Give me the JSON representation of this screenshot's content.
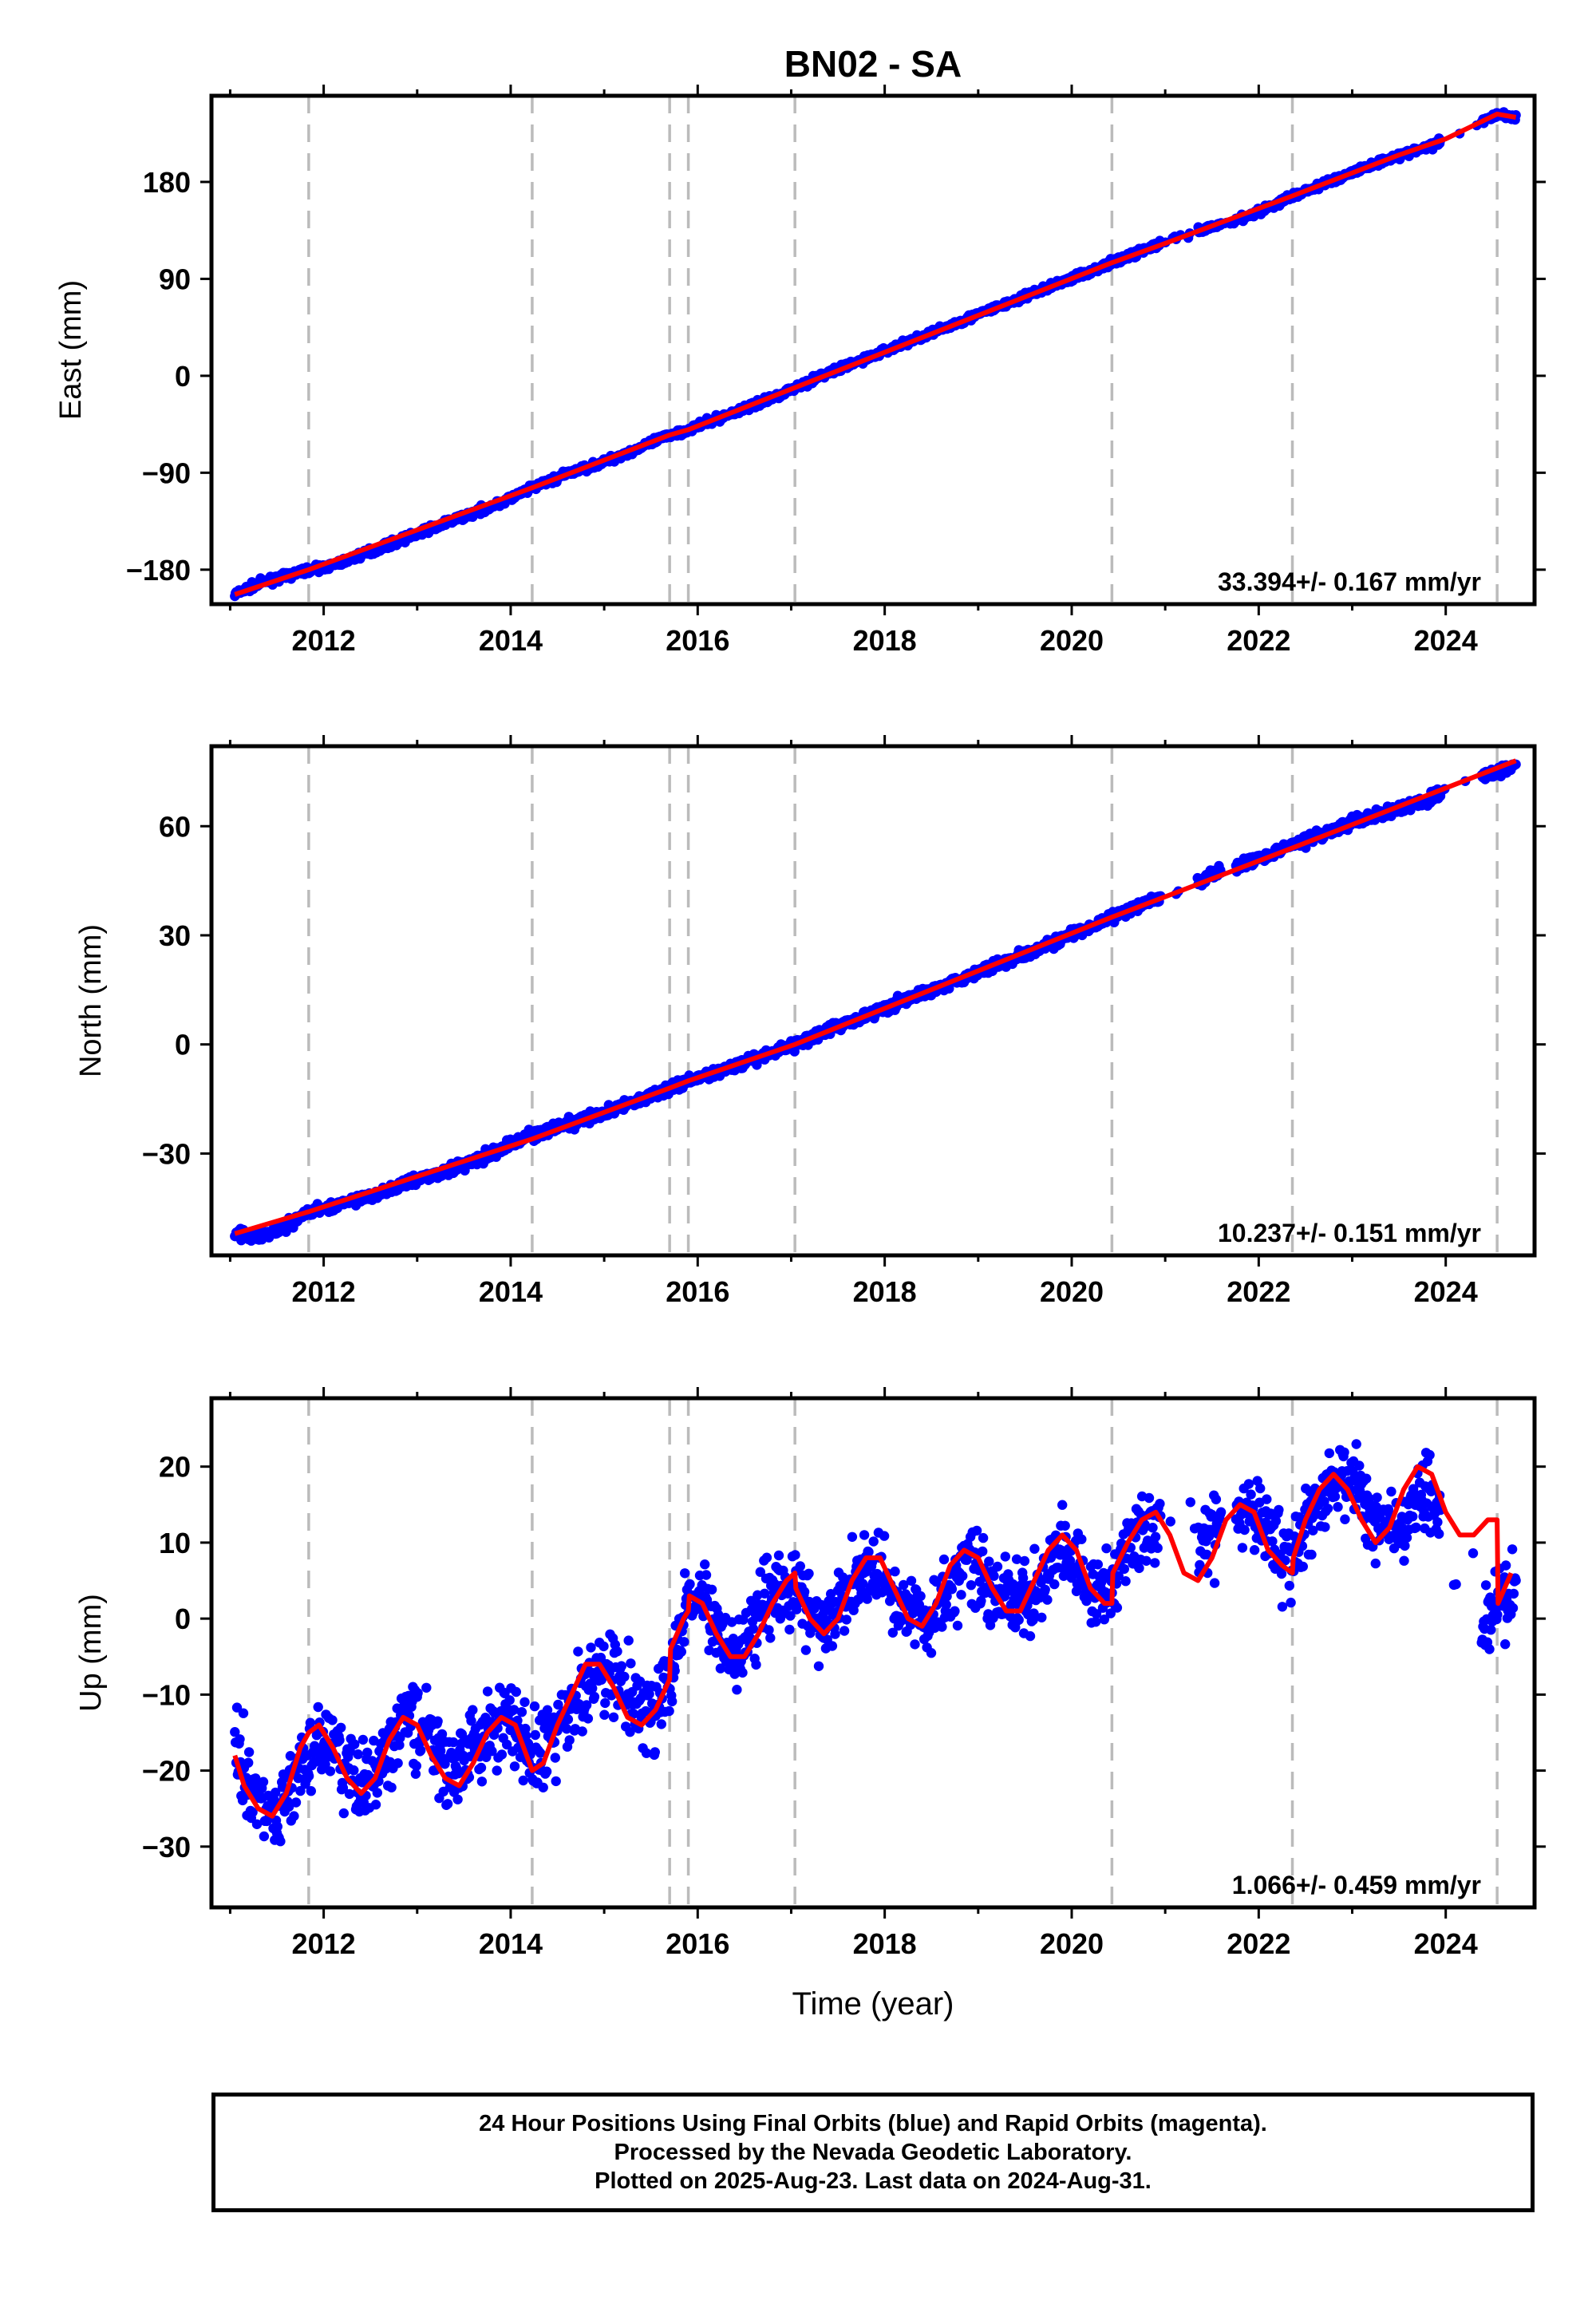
{
  "title": "BN02 - SA",
  "colors": {
    "data": "#0000ff",
    "model": "#ff0000",
    "breaks": "#bbbbbb",
    "frame": "#000000"
  },
  "footer": {
    "line1": "24 Hour Positions Using Final Orbits (blue) and Rapid Orbits (magenta).",
    "line2": "Processed by the Nevada Geodetic Laboratory.",
    "line3": "Plotted on 2025-Aug-23. Last data on 2024-Aug-31."
  },
  "chart_data": [
    {
      "type": "scatter",
      "title": "BN02 - SA",
      "ylabel": "East (mm)",
      "xlabel": "",
      "xlim": [
        2010.8,
        2024.95
      ],
      "ylim": [
        -212,
        260
      ],
      "xticks": [
        2012,
        2014,
        2016,
        2018,
        2020,
        2022,
        2024
      ],
      "yticks": [
        -180,
        -90,
        0,
        90,
        180
      ],
      "ytick_labels": [
        "−180",
        "−90",
        "0",
        "90",
        "180"
      ],
      "rate_label": "33.394+/- 0.167 mm/yr",
      "breaks": [
        2011.84,
        2014.23,
        2015.7,
        2015.9,
        2017.04,
        2020.43,
        2022.36,
        2024.55
      ],
      "series": [
        {
          "kind": "observations",
          "x": [
            2011.05,
            2011.3,
            2011.6,
            2011.84,
            2012.1,
            2012.5,
            2012.9,
            2013.3,
            2013.7,
            2014.0,
            2014.23,
            2014.6,
            2015.0,
            2015.4,
            2015.7,
            2015.9,
            2016.3,
            2016.7,
            2017.04,
            2017.4,
            2017.8,
            2018.2,
            2018.6,
            2019.0,
            2019.4,
            2019.8,
            2020.2,
            2020.43,
            2020.8,
            2021.1,
            2021.9,
            2022.1,
            2022.36,
            2022.7,
            2023.0,
            2023.4,
            2023.8,
            2024.0,
            2024.55,
            2024.75
          ],
          "y": [
            -203,
            -193,
            -186,
            -180,
            -176,
            -163,
            -150,
            -137,
            -124,
            -114,
            -104,
            -91,
            -80,
            -66,
            -55,
            -50,
            -37,
            -24,
            -11,
            3,
            16,
            30,
            43,
            57,
            70,
            84,
            97,
            105,
            118,
            127,
            149,
            156,
            167,
            178,
            189,
            202,
            212,
            220,
            243,
            240
          ]
        },
        {
          "kind": "model",
          "x": [
            2011.05,
            2011.84,
            2014.23,
            2015.7,
            2015.9,
            2017.04,
            2020.43,
            2021.0,
            2022.36,
            2023.5,
            2024.0,
            2024.55,
            2024.75
          ],
          "y": [
            -203,
            -180,
            -104,
            -55,
            -50,
            -11,
            105,
            123,
            167,
            205,
            220,
            243,
            240
          ]
        }
      ]
    },
    {
      "type": "scatter",
      "title": "",
      "ylabel": "North (mm)",
      "xlabel": "",
      "xlim": [
        2010.8,
        2024.95
      ],
      "ylim": [
        -58,
        82
      ],
      "xticks": [
        2012,
        2014,
        2016,
        2018,
        2020,
        2022,
        2024
      ],
      "yticks": [
        -30,
        0,
        30,
        60
      ],
      "ytick_labels": [
        "−30",
        "0",
        "30",
        "60"
      ],
      "rate_label": "10.237+/- 0.151 mm/yr",
      "breaks": [
        2011.84,
        2014.23,
        2015.7,
        2015.9,
        2017.04,
        2020.43,
        2022.36,
        2024.55
      ],
      "series": [
        {
          "kind": "observations",
          "x": [
            2011.05,
            2011.3,
            2011.6,
            2011.84,
            2012.2,
            2012.6,
            2013.0,
            2013.4,
            2013.8,
            2014.1,
            2014.23,
            2014.6,
            2015.0,
            2015.4,
            2015.7,
            2015.9,
            2016.3,
            2016.7,
            2017.04,
            2017.4,
            2017.8,
            2018.2,
            2018.6,
            2019.0,
            2019.4,
            2019.8,
            2020.2,
            2020.43,
            2020.8,
            2021.1,
            2021.6,
            2022.0,
            2022.36,
            2022.7,
            2023.0,
            2023.4,
            2023.8,
            2024.0,
            2024.55,
            2024.75
          ],
          "y": [
            -52,
            -53,
            -50,
            -46,
            -44,
            -41,
            -37,
            -34,
            -30,
            -26,
            -25,
            -22,
            -19,
            -15,
            -12,
            -10,
            -7,
            -3,
            0,
            4,
            8,
            12,
            16,
            20,
            24,
            28,
            32,
            35,
            39,
            42,
            48,
            51,
            55,
            58,
            61,
            64,
            67,
            70,
            75,
            77
          ]
        },
        {
          "kind": "model",
          "x": [
            2011.05,
            2011.84,
            2014.23,
            2015.7,
            2015.9,
            2017.04,
            2020.43,
            2022.36,
            2024.55,
            2024.75
          ],
          "y": [
            -52,
            -46,
            -26,
            -12,
            -10,
            0,
            35,
            54,
            76,
            78
          ]
        }
      ]
    },
    {
      "type": "scatter",
      "title": "",
      "ylabel": "Up (mm)",
      "xlabel": "Time (year)",
      "xlim": [
        2010.8,
        2024.95
      ],
      "ylim": [
        -38,
        29
      ],
      "xticks": [
        2012,
        2014,
        2016,
        2018,
        2020,
        2022,
        2024
      ],
      "yticks": [
        -30,
        -20,
        -10,
        0,
        10,
        20
      ],
      "ytick_labels": [
        "−30",
        "−20",
        "−10",
        "0",
        "10",
        "20"
      ],
      "rate_label": "1.066+/- 0.459 mm/yr",
      "breaks": [
        2011.84,
        2014.23,
        2015.7,
        2015.9,
        2017.04,
        2020.43,
        2022.36,
        2024.55
      ],
      "series": [
        {
          "kind": "observations",
          "x": [
            2011.05,
            2011.3,
            2011.5,
            2011.8,
            2012.0,
            2012.4,
            2012.6,
            2012.9,
            2013.2,
            2013.4,
            2013.7,
            2014.0,
            2014.23,
            2014.5,
            2014.9,
            2015.2,
            2015.5,
            2015.7,
            2015.9,
            2016.1,
            2016.4,
            2016.7,
            2017.0,
            2017.3,
            2017.6,
            2017.9,
            2018.2,
            2018.5,
            2018.9,
            2019.2,
            2019.5,
            2019.9,
            2020.2,
            2020.43,
            2020.6,
            2020.9,
            2021.5,
            2021.9,
            2022.36,
            2022.6,
            2022.9,
            2023.2,
            2023.5,
            2023.8,
            2024.4,
            2024.6,
            2024.75
          ],
          "y": [
            -16,
            -24,
            -26,
            -19,
            -16,
            -22,
            -20,
            -13,
            -16,
            -21,
            -15,
            -13,
            -19,
            -15,
            -7,
            -9,
            -13,
            -8,
            3,
            1,
            -5,
            3,
            5,
            -2,
            3,
            7,
            2,
            0,
            8,
            3,
            2,
            9,
            4,
            3,
            10,
            13,
            10,
            15,
            7,
            15,
            19,
            14,
            12,
            18,
            0,
            2,
            5
          ]
        },
        {
          "kind": "model",
          "x": [
            2011.05,
            2011.15,
            2011.3,
            2011.45,
            2011.6,
            2011.75,
            2011.84,
            2011.95,
            2012.1,
            2012.25,
            2012.4,
            2012.55,
            2012.7,
            2012.85,
            2013.0,
            2013.15,
            2013.3,
            2013.45,
            2013.6,
            2013.75,
            2013.9,
            2014.05,
            2014.23,
            2014.35,
            2014.5,
            2014.65,
            2014.8,
            2014.95,
            2015.1,
            2015.25,
            2015.4,
            2015.55,
            2015.7,
            2015.71,
            2015.85,
            2015.9,
            2015.91,
            2016.05,
            2016.2,
            2016.35,
            2016.5,
            2016.65,
            2016.8,
            2016.95,
            2017.04,
            2017.05,
            2017.2,
            2017.35,
            2017.5,
            2017.65,
            2017.8,
            2017.95,
            2018.1,
            2018.25,
            2018.4,
            2018.55,
            2018.7,
            2018.85,
            2019.0,
            2019.15,
            2019.3,
            2019.45,
            2019.6,
            2019.75,
            2019.9,
            2020.05,
            2020.2,
            2020.35,
            2020.43,
            2020.44,
            2020.6,
            2020.75,
            2020.9,
            2021.05,
            2021.2,
            2021.35,
            2021.5,
            2021.65,
            2021.8,
            2021.95,
            2022.1,
            2022.25,
            2022.36,
            2022.37,
            2022.5,
            2022.65,
            2022.8,
            2022.95,
            2023.1,
            2023.25,
            2023.4,
            2023.55,
            2023.7,
            2023.85,
            2024.0,
            2024.15,
            2024.3,
            2024.45,
            2024.55,
            2024.56,
            2024.7
          ],
          "y": [
            -18,
            -22,
            -25,
            -26,
            -23,
            -17,
            -15,
            -14,
            -17,
            -21,
            -23,
            -21,
            -16,
            -13,
            -14,
            -18,
            -21,
            -22,
            -19,
            -15,
            -13,
            -14,
            -20,
            -19,
            -14,
            -10,
            -6,
            -6,
            -9,
            -13,
            -14,
            -12,
            -8,
            -4,
            0,
            1,
            3,
            2,
            -2,
            -5,
            -5,
            -2,
            2,
            5,
            6,
            4,
            0,
            -2,
            0,
            5,
            8,
            8,
            4,
            0,
            -1,
            2,
            7,
            9,
            8,
            4,
            1,
            1,
            5,
            9,
            11,
            9,
            4,
            2,
            2,
            6,
            10,
            13,
            14,
            11,
            6,
            5,
            8,
            13,
            15,
            14,
            9,
            7,
            6,
            8,
            13,
            17,
            19,
            17,
            13,
            10,
            12,
            17,
            20,
            19,
            14,
            11,
            11,
            13,
            13,
            2,
            6
          ]
        }
      ]
    }
  ]
}
